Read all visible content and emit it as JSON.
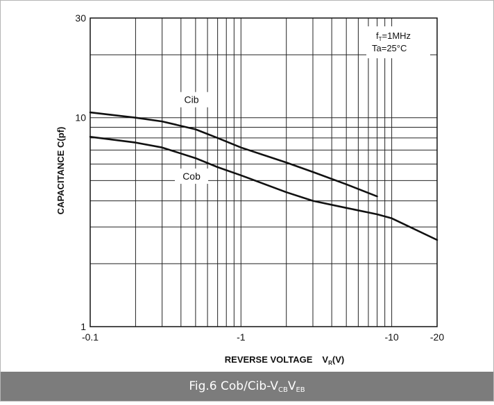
{
  "chart_data": {
    "type": "line",
    "xscale": "log",
    "yscale": "log",
    "xlim": [
      0.1,
      20
    ],
    "ylim": [
      1,
      30
    ],
    "x_ticks": [
      {
        "value": 0.1,
        "label": "-0.1"
      },
      {
        "value": 1,
        "label": "-1"
      },
      {
        "value": 10,
        "label": "-10"
      },
      {
        "value": 20,
        "label": "-20"
      }
    ],
    "y_ticks": [
      {
        "value": 1,
        "label": "1"
      },
      {
        "value": 10,
        "label": "10"
      },
      {
        "value": 30,
        "label": "30"
      }
    ],
    "x_gridlines": [
      0.2,
      0.3,
      0.4,
      0.5,
      0.6,
      0.7,
      0.8,
      0.9,
      1,
      2,
      3,
      4,
      5,
      6,
      7,
      8,
      9,
      10
    ],
    "y_gridlines": [
      2,
      3,
      4,
      5,
      6,
      7,
      8,
      9,
      10,
      20
    ],
    "xlabel": "REVERSE VOLTAGE",
    "xlabel_symbol": {
      "main": "V",
      "sub": "R"
    },
    "xlabel_unit": "(V)",
    "ylabel": "CAPACITANCE   C(pf)",
    "grid": true,
    "series": [
      {
        "name": "Cib",
        "x": [
          0.1,
          0.2,
          0.3,
          0.5,
          0.7,
          1,
          2,
          3,
          5,
          8
        ],
        "y": [
          10.6,
          10.0,
          9.6,
          8.8,
          8.0,
          7.2,
          6.1,
          5.5,
          4.8,
          4.2
        ]
      },
      {
        "name": "Cob",
        "x": [
          0.1,
          0.2,
          0.3,
          0.5,
          0.7,
          1,
          2,
          3,
          5,
          8,
          10,
          20
        ],
        "y": [
          8.1,
          7.6,
          7.2,
          6.4,
          5.8,
          5.3,
          4.4,
          4.0,
          3.7,
          3.45,
          3.3,
          2.6
        ]
      }
    ],
    "annotation_lines": [
      {
        "main": "f",
        "sub": "T",
        "rest": "=1MHz"
      },
      {
        "main": "Ta=25°C",
        "sub": "",
        "rest": ""
      }
    ],
    "caption": {
      "prefix": "Fig.6 Cob/Cib-V",
      "sub1": "CB",
      "mid": "V",
      "sub2": "EB"
    }
  }
}
